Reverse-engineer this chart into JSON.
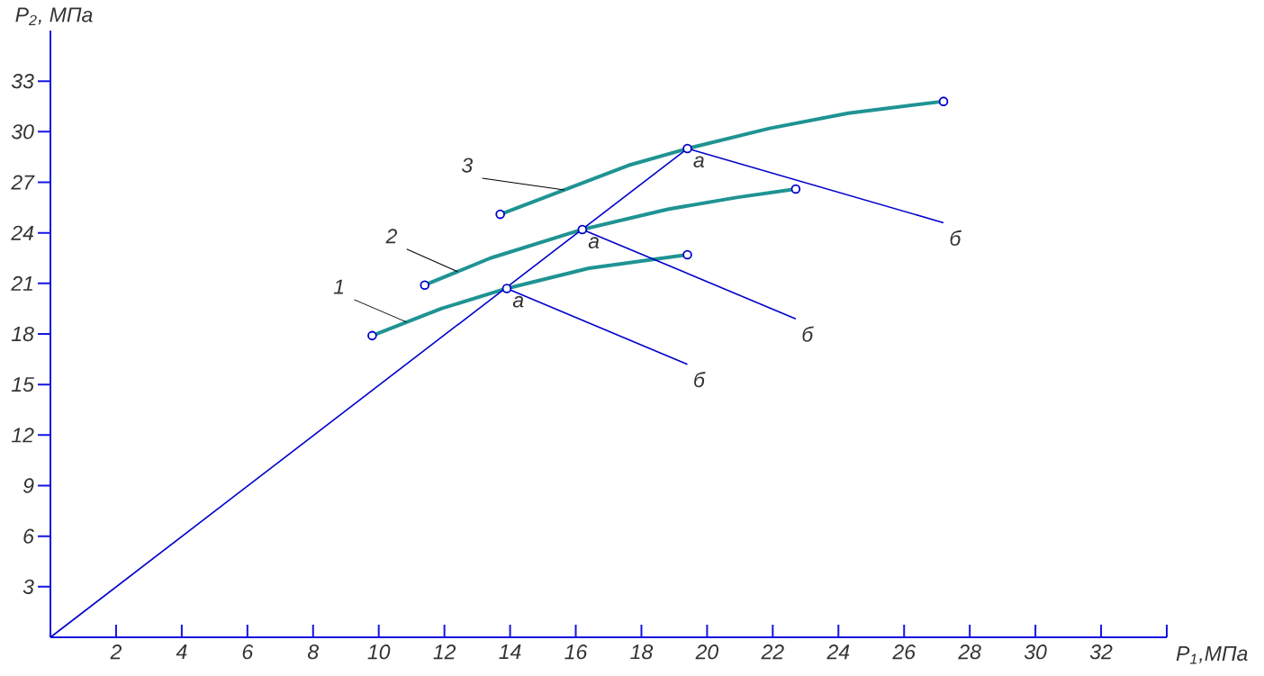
{
  "chart_data": {
    "type": "line",
    "xlabel": "P$_{1}$,МПа",
    "ylabel": "P$_{2}$, МПа",
    "xlim": [
      0,
      34
    ],
    "ylim": [
      0,
      36
    ],
    "xticks": [
      2,
      4,
      6,
      8,
      10,
      12,
      14,
      16,
      18,
      20,
      22,
      24,
      26,
      28,
      30,
      32,
      {
        "value": 34,
        "label": null
      }
    ],
    "yticks": [
      3,
      6,
      9,
      12,
      15,
      18,
      21,
      24,
      27,
      30,
      33
    ],
    "grid": false,
    "series": [
      {
        "name": "1",
        "color": "#1f9393",
        "marker": "none",
        "line_style": "solid",
        "x": [
          9.8,
          11.9,
          13.9,
          16.4,
          19.4
        ],
        "values": [
          17.9,
          19.5,
          20.7,
          21.9,
          22.7
        ]
      },
      {
        "name": "2",
        "color": "#1f9393",
        "marker": "none",
        "line_style": "solid",
        "x": [
          11.4,
          13.4,
          16.2,
          18.8,
          20.9,
          22.7
        ],
        "values": [
          20.9,
          22.5,
          24.2,
          25.4,
          26.1,
          26.6
        ]
      },
      {
        "name": "3",
        "color": "#1f9393",
        "marker": "none",
        "line_style": "solid",
        "x": [
          13.7,
          17.6,
          19.4,
          21.9,
          24.3,
          27.2
        ],
        "values": [
          25.1,
          28.0,
          29.0,
          30.2,
          31.1,
          31.8
        ]
      },
      {
        "color": "#0000cc",
        "marker": "none",
        "line_style": "solid",
        "x": [
          0,
          19.4
        ],
        "values": [
          0,
          29.0
        ]
      },
      {
        "color": "#0000cc",
        "marker": "none",
        "line_style": "solid",
        "x": [
          13.9,
          19.4
        ],
        "values": [
          20.7,
          16.2
        ]
      },
      {
        "color": "#0000cc",
        "marker": "none",
        "line_style": "solid",
        "x": [
          16.2,
          22.7
        ],
        "values": [
          24.2,
          18.9
        ]
      },
      {
        "color": "#0000cc",
        "marker": "none",
        "line_style": "solid",
        "x": [
          19.4,
          27.2
        ],
        "values": [
          29.0,
          24.6
        ]
      },
      {
        "type": "scatter",
        "color": "#0000cc",
        "marker": "circle",
        "x": [
          9.8,
          13.9,
          19.4,
          11.4,
          16.2,
          22.7,
          13.7,
          19.4,
          27.2
        ],
        "values": [
          17.9,
          20.7,
          22.7,
          20.9,
          24.2,
          26.6,
          25.1,
          29.0,
          31.8
        ]
      }
    ],
    "annotations": [
      {
        "text": "а",
        "x": 13.9,
        "y": 20.7
      },
      {
        "text": "а",
        "x": 16.2,
        "y": 24.2
      },
      {
        "text": "а",
        "x": 19.4,
        "y": 29.0
      },
      {
        "text": "б",
        "x": 19.4,
        "y": 16.2
      },
      {
        "text": "б",
        "x": 22.7,
        "y": 18.9
      },
      {
        "text": "б",
        "x": 27.2,
        "y": 24.6
      }
    ]
  }
}
